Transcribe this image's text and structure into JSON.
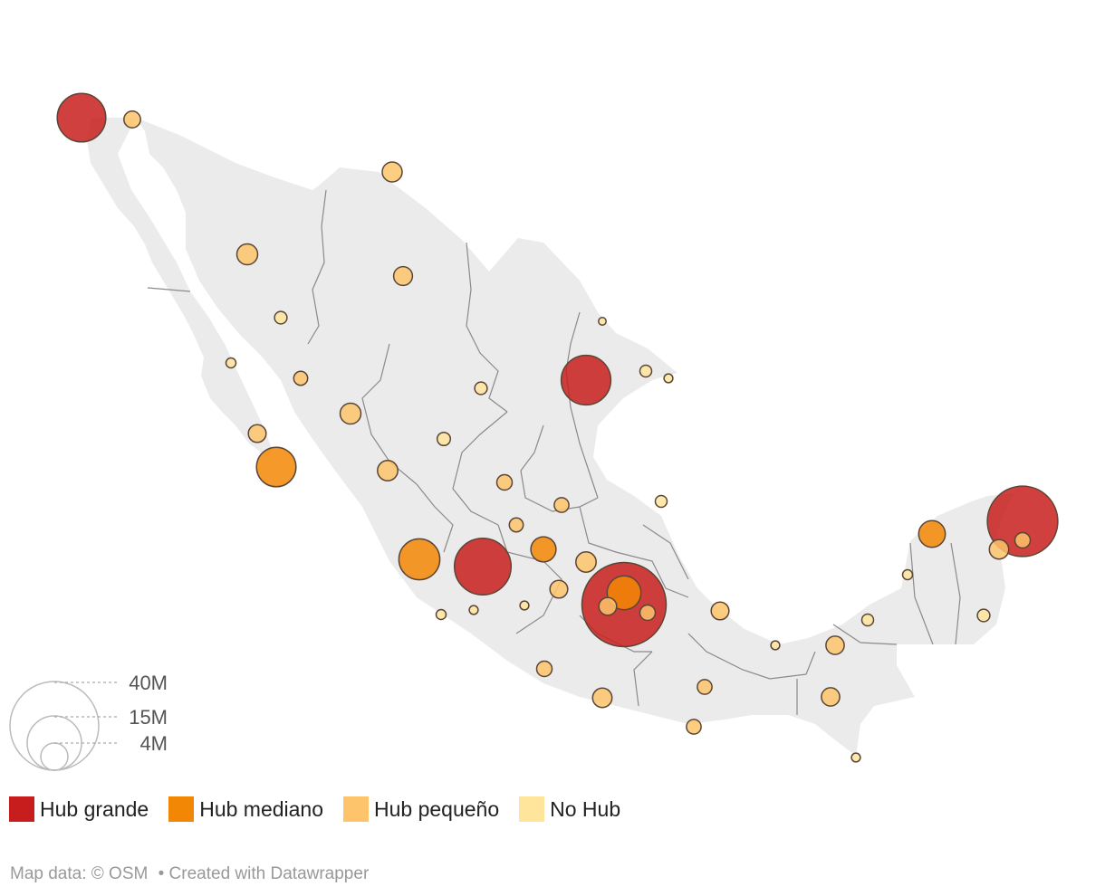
{
  "map": {
    "size_legend": [
      {
        "label": "40M",
        "value": 40000000
      },
      {
        "label": "15M",
        "value": 15000000
      },
      {
        "label": "4M",
        "value": 4000000
      }
    ],
    "categories": [
      {
        "key": "grande",
        "label": "Hub grande",
        "color": "#c71e1d"
      },
      {
        "key": "mediano",
        "label": "Hub mediano",
        "color": "#f28705"
      },
      {
        "key": "pequeno",
        "label": "Hub pequeño",
        "color": "#fdc46b"
      },
      {
        "key": "nohub",
        "label": "No Hub",
        "color": "#ffe49c"
      }
    ],
    "points": [
      {
        "cat": "grande",
        "value": 12000000
      },
      {
        "cat": "pequeno",
        "value": 1400000
      },
      {
        "cat": "pequeno",
        "value": 2000000
      },
      {
        "cat": "pequeno",
        "value": 2200000
      },
      {
        "cat": "pequeno",
        "value": 1800000
      },
      {
        "cat": "nohub",
        "value": 800000
      },
      {
        "cat": "nohub",
        "value": 500000
      },
      {
        "cat": "pequeno",
        "value": 1000000
      },
      {
        "cat": "pequeno",
        "value": 2200000
      },
      {
        "cat": "pequeno",
        "value": 1600000
      },
      {
        "cat": "mediano",
        "value": 7900000
      },
      {
        "cat": "nohub",
        "value": 800000
      },
      {
        "cat": "nohub",
        "value": 900000
      },
      {
        "cat": "pequeno",
        "value": 2100000
      },
      {
        "cat": "nohub",
        "value": 300000
      },
      {
        "cat": "grande",
        "value": 12500000
      },
      {
        "cat": "nohub",
        "value": 700000
      },
      {
        "cat": "nohub",
        "value": 400000
      },
      {
        "cat": "pequeno",
        "value": 1100000
      },
      {
        "cat": "nohub",
        "value": 700000
      },
      {
        "cat": "pequeno",
        "value": 1000000
      },
      {
        "cat": "pequeno",
        "value": 1200000
      },
      {
        "cat": "mediano",
        "value": 8500000
      },
      {
        "cat": "grande",
        "value": 16300000
      },
      {
        "cat": "mediano",
        "value": 3200000
      },
      {
        "cat": "pequeno",
        "value": 2100000
      },
      {
        "cat": "pequeno",
        "value": 1600000
      },
      {
        "cat": "nohub",
        "value": 400000
      },
      {
        "cat": "nohub",
        "value": 400000
      },
      {
        "cat": "nohub",
        "value": 500000
      },
      {
        "cat": "grande",
        "value": 36000000
      },
      {
        "cat": "mediano",
        "value": 5800000
      },
      {
        "cat": "pequeno",
        "value": 1600000
      },
      {
        "cat": "pequeno",
        "value": 1200000
      },
      {
        "cat": "pequeno",
        "value": 1600000
      },
      {
        "cat": "pequeno",
        "value": 1200000
      },
      {
        "cat": "pequeno",
        "value": 1900000
      },
      {
        "cat": "pequeno",
        "value": 1100000
      },
      {
        "cat": "pequeno",
        "value": 1100000
      },
      {
        "cat": "nohub",
        "value": 400000
      },
      {
        "cat": "pequeno",
        "value": 1700000
      },
      {
        "cat": "pequeno",
        "value": 1700000
      },
      {
        "cat": "nohub",
        "value": 700000
      },
      {
        "cat": "nohub",
        "value": 500000
      },
      {
        "cat": "nohub",
        "value": 400000
      },
      {
        "cat": "mediano",
        "value": 3600000
      },
      {
        "cat": "grande",
        "value": 25200000
      },
      {
        "cat": "pequeno",
        "value": 1900000
      },
      {
        "cat": "pequeno",
        "value": 1200000
      },
      {
        "cat": "nohub",
        "value": 800000
      }
    ]
  },
  "footer": {
    "map_data": "Map data: © OSM",
    "created": "• Created with Datawrapper"
  }
}
